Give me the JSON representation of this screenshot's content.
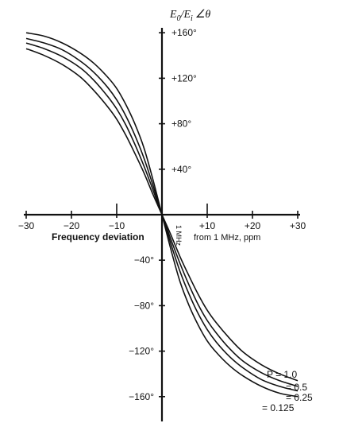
{
  "chart_data": {
    "type": "line",
    "title": "",
    "y_title": {
      "main": "E",
      "sub_0": "0",
      "slash": "/E",
      "sub_i": "i",
      "angle": "∠θ"
    },
    "xlabel": "Frequency deviation",
    "xlabel_right": "from 1 MHz,  ppm",
    "xlim": [
      -30,
      30
    ],
    "ylim": [
      -180,
      180
    ],
    "x_ticks": [
      {
        "value": -30,
        "label": "−30"
      },
      {
        "value": -20,
        "label": "−20"
      },
      {
        "value": -10,
        "label": "−10"
      },
      {
        "value": 10,
        "label": "+10"
      },
      {
        "value": 20,
        "label": "+20"
      },
      {
        "value": 30,
        "label": "+30"
      }
    ],
    "y_ticks": [
      {
        "value": 160,
        "label": "+160°"
      },
      {
        "value": 120,
        "label": "+120°"
      },
      {
        "value": 80,
        "label": "+80°"
      },
      {
        "value": 40,
        "label": "+40°"
      },
      {
        "value": -40,
        "label": "−40°"
      },
      {
        "value": -80,
        "label": "−80°"
      },
      {
        "value": -120,
        "label": "−120°"
      },
      {
        "value": -160,
        "label": "−160°"
      }
    ],
    "axis_annotation": "1 MHz",
    "series": [
      {
        "name": "P = 1.0",
        "x": [
          -30,
          -26,
          -22,
          -18,
          -15,
          -12,
          -10,
          -8,
          -6,
          -4,
          -2,
          0,
          2,
          4,
          6,
          8,
          10,
          12,
          15,
          18,
          22,
          26,
          30
        ],
        "y": [
          160,
          157,
          151,
          142,
          133,
          121,
          111,
          97,
          80,
          59,
          31,
          0,
          -31,
          -59,
          -80,
          -97,
          -111,
          -121,
          -133,
          -142,
          -151,
          -157,
          -160
        ]
      },
      {
        "name": "= 0.5",
        "x": [
          -30,
          -26,
          -22,
          -18,
          -15,
          -12,
          -10,
          -8,
          -6,
          -4,
          -2,
          0,
          2,
          4,
          6,
          8,
          10,
          12,
          15,
          18,
          22,
          26,
          30
        ],
        "y": [
          155,
          151,
          145,
          135,
          125,
          112,
          101,
          87,
          70,
          50,
          26,
          0,
          -26,
          -50,
          -70,
          -87,
          -101,
          -112,
          -125,
          -135,
          -145,
          -151,
          -155
        ]
      },
      {
        "name": "= 0.25",
        "x": [
          -30,
          -26,
          -22,
          -18,
          -15,
          -12,
          -10,
          -8,
          -6,
          -4,
          -2,
          0,
          2,
          4,
          6,
          8,
          10,
          12,
          15,
          18,
          22,
          26,
          30
        ],
        "y": [
          151,
          146,
          139,
          129,
          118,
          104,
          93,
          79,
          62,
          43,
          22,
          0,
          -22,
          -43,
          -62,
          -79,
          -93,
          -104,
          -118,
          -129,
          -139,
          -146,
          -151
        ]
      },
      {
        "name": "= 0.125",
        "x": [
          -30,
          -26,
          -22,
          -18,
          -15,
          -12,
          -10,
          -8,
          -6,
          -4,
          -2,
          0,
          2,
          4,
          6,
          8,
          10,
          12,
          15,
          18,
          22,
          26,
          30
        ],
        "y": [
          146,
          140,
          132,
          121,
          109,
          95,
          84,
          70,
          54,
          37,
          18,
          0,
          -18,
          -37,
          -54,
          -70,
          -84,
          -95,
          -109,
          -121,
          -132,
          -140,
          -146
        ]
      }
    ]
  }
}
